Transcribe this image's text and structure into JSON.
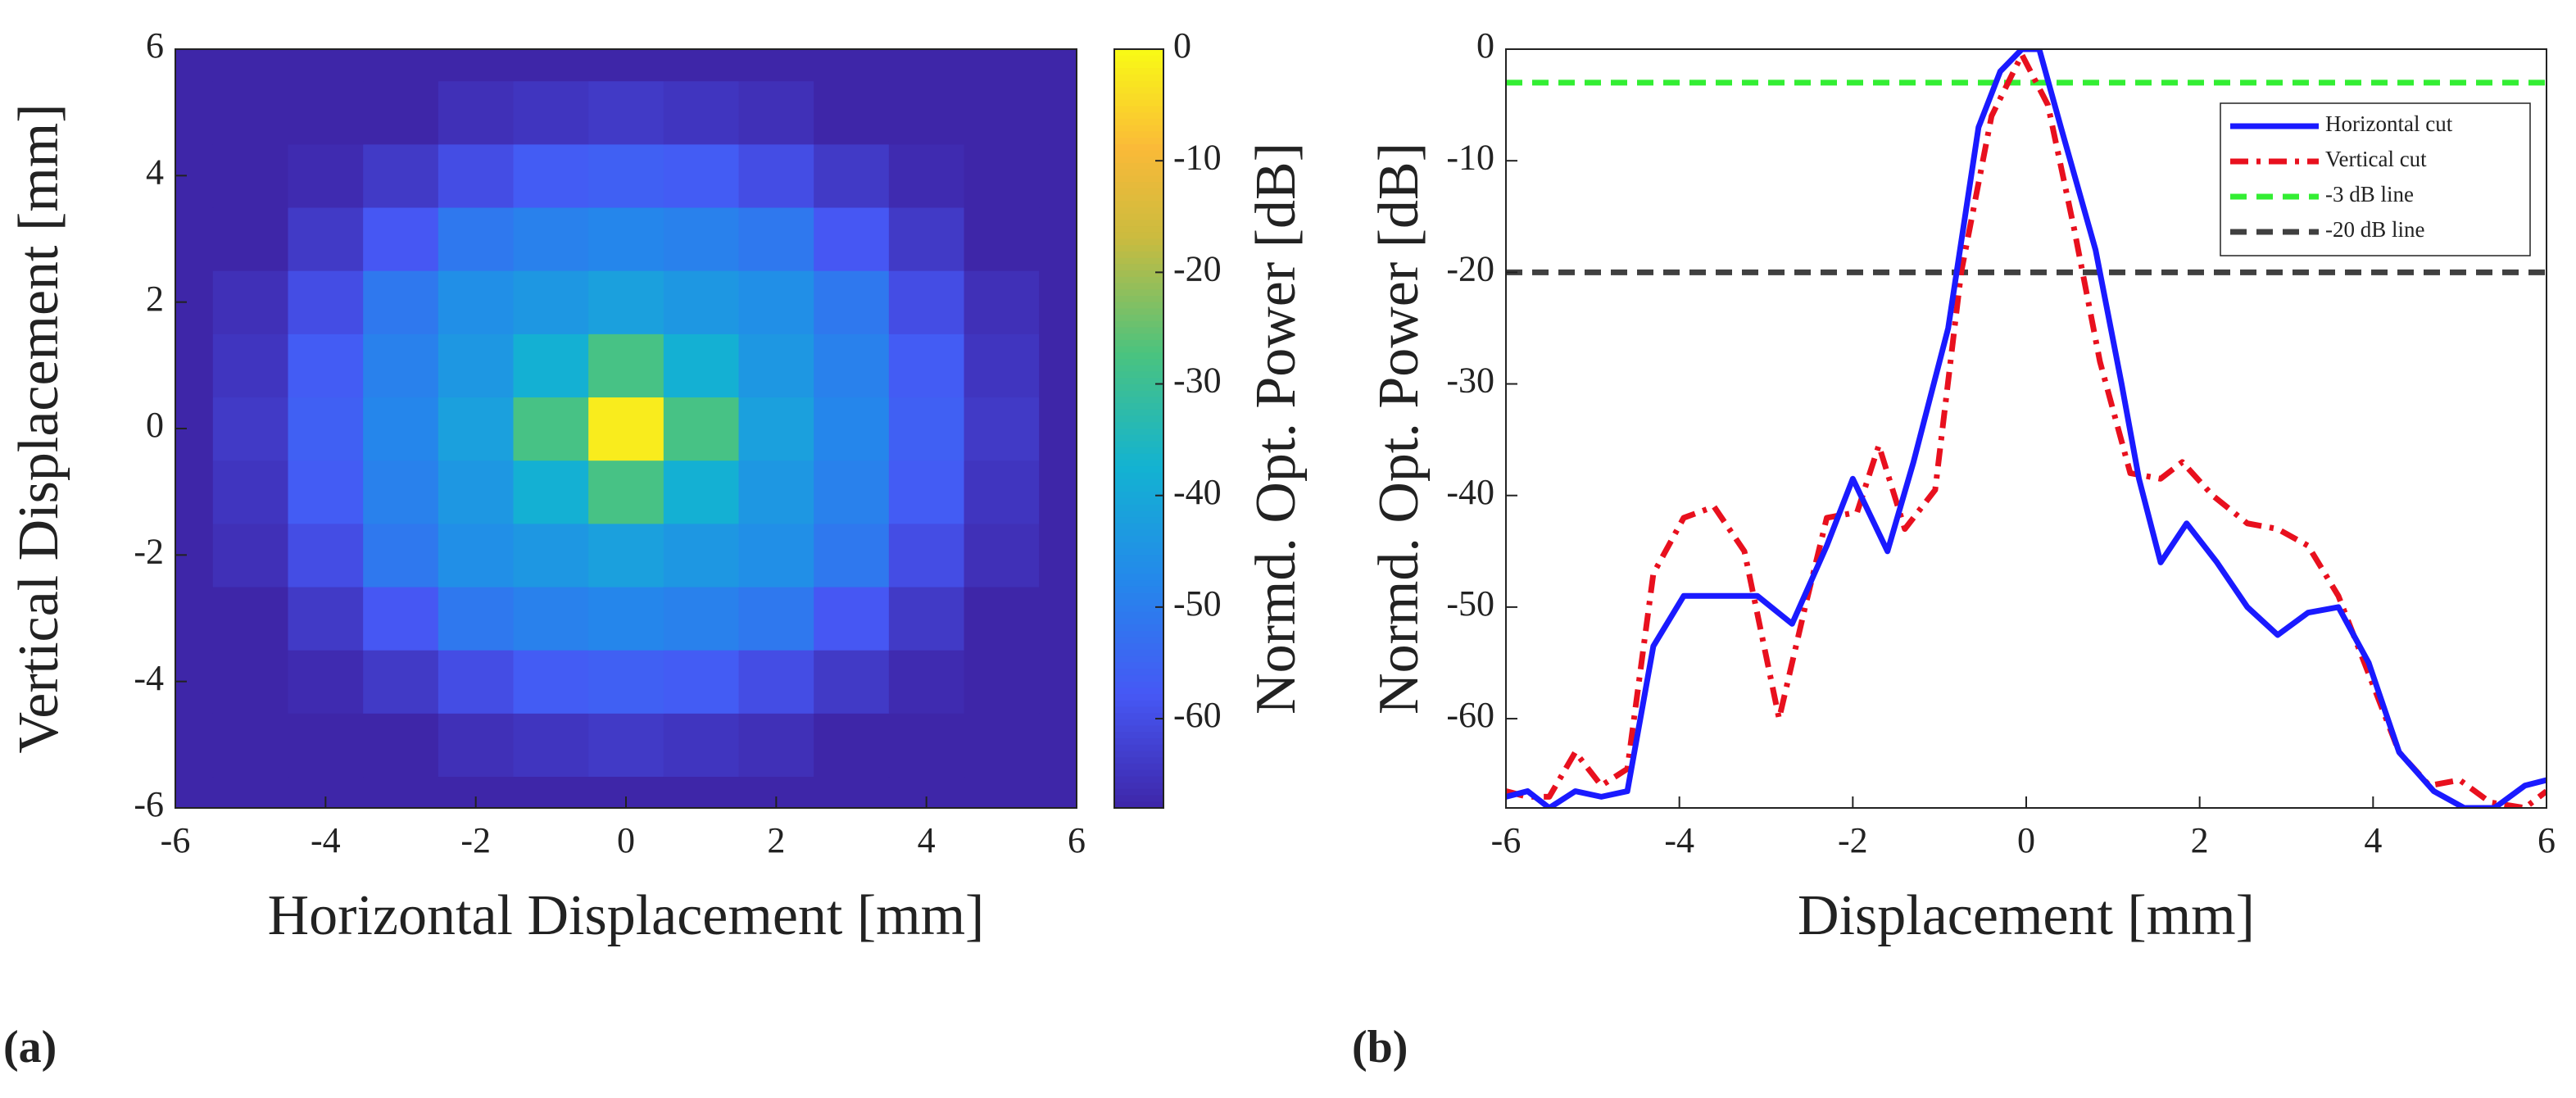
{
  "chart_data": [
    {
      "type": "contour",
      "panel_label": "(a)",
      "x_label": "Horizontal Displacement [mm]",
      "y_label": "Vertical Displacement [mm]",
      "colorbar_label": "Normd. Opt. Power [dB]",
      "colormap": "parula",
      "x": [
        -6,
        -5,
        -4,
        -3,
        -2,
        -1,
        0,
        1,
        2,
        3,
        4,
        5,
        6
      ],
      "y": [
        -6,
        -5,
        -4,
        -3,
        -2,
        -1,
        0,
        1,
        2,
        3,
        4,
        5,
        6
      ],
      "z": [
        [
          -68,
          -68,
          -68,
          -68,
          -68,
          -68,
          -68,
          -68,
          -68,
          -68,
          -68,
          -68,
          -68
        ],
        [
          -68,
          -68,
          -68,
          -68,
          -66,
          -65,
          -64,
          -65,
          -66,
          -68,
          -68,
          -68,
          -68
        ],
        [
          -68,
          -68,
          -67,
          -64,
          -60,
          -57,
          -56,
          -57,
          -60,
          -64,
          -67,
          -68,
          -68
        ],
        [
          -68,
          -68,
          -64,
          -58,
          -51,
          -49,
          -48,
          -49,
          -51,
          -58,
          -64,
          -68,
          -68
        ],
        [
          -68,
          -66,
          -60,
          -51,
          -46,
          -44,
          -42,
          -44,
          -46,
          -51,
          -60,
          -66,
          -68
        ],
        [
          -68,
          -65,
          -57,
          -49,
          -44,
          -38,
          -28,
          -38,
          -44,
          -49,
          -57,
          -65,
          -68
        ],
        [
          -68,
          -64,
          -56,
          -48,
          -42,
          -28,
          -2,
          -28,
          -42,
          -48,
          -56,
          -64,
          -68
        ],
        [
          -68,
          -65,
          -57,
          -49,
          -44,
          -38,
          -28,
          -38,
          -44,
          -49,
          -57,
          -65,
          -68
        ],
        [
          -68,
          -66,
          -60,
          -51,
          -46,
          -44,
          -42,
          -44,
          -46,
          -51,
          -60,
          -66,
          -68
        ],
        [
          -68,
          -68,
          -64,
          -58,
          -51,
          -49,
          -48,
          -49,
          -51,
          -58,
          -64,
          -68,
          -68
        ],
        [
          -68,
          -68,
          -67,
          -64,
          -60,
          -57,
          -56,
          -57,
          -60,
          -64,
          -67,
          -68,
          -68
        ],
        [
          -68,
          -68,
          -68,
          -68,
          -66,
          -65,
          -64,
          -65,
          -66,
          -68,
          -68,
          -68,
          -68
        ],
        [
          -68,
          -68,
          -68,
          -68,
          -68,
          -68,
          -68,
          -68,
          -68,
          -68,
          -68,
          -68,
          -68
        ]
      ],
      "xlim": [
        -6,
        6
      ],
      "ylim": [
        -6,
        6
      ],
      "xticks": [
        -6,
        -4,
        -2,
        0,
        2,
        4,
        6
      ],
      "yticks": [
        -6,
        -4,
        -2,
        0,
        2,
        4,
        6
      ],
      "clim": [
        -68,
        0
      ],
      "cticks": [
        0,
        -10,
        -20,
        -30,
        -40,
        -50,
        -60
      ]
    },
    {
      "type": "line",
      "panel_label": "(b)",
      "x_label": "Displacement [mm]",
      "y_label": "Normd. Opt. Power [dB]",
      "xlim": [
        -6,
        6
      ],
      "ylim": [
        -68,
        0
      ],
      "xticks": [
        -6,
        -4,
        -2,
        0,
        2,
        4,
        6
      ],
      "yticks": [
        0,
        -10,
        -20,
        -30,
        -40,
        -50,
        -60
      ],
      "legend": "northeast",
      "series": [
        {
          "name": "Horizontal cut",
          "color": "#1a1aff",
          "style": "solid",
          "x": [
            -6,
            -5.75,
            -5.5,
            -5.2,
            -4.9,
            -4.6,
            -4.3,
            -3.95,
            -3.5,
            -3.1,
            -2.7,
            -2.3,
            -2,
            -1.6,
            -1.3,
            -0.9,
            -0.55,
            -0.3,
            -0.05,
            0.15,
            0.4,
            0.8,
            1.1,
            1.3,
            1.55,
            1.85,
            2.2,
            2.55,
            2.9,
            3.25,
            3.6,
            3.95,
            4.3,
            4.7,
            5.05,
            5.4,
            5.75,
            6
          ],
          "values": [
            -67,
            -66.5,
            -68,
            -66.5,
            -67,
            -66.5,
            -53.5,
            -49,
            -49,
            -49,
            -51.5,
            -44.5,
            -38.5,
            -45,
            -37,
            -25,
            -7,
            -2,
            0,
            0,
            -7,
            -18,
            -30,
            -38.5,
            -46,
            -42.5,
            -46,
            -50,
            -52.5,
            -50.5,
            -50,
            -55,
            -63,
            -66.5,
            -68,
            -68,
            -66,
            -65.5
          ]
        },
        {
          "name": "Vertical cut",
          "color": "#e8101e",
          "style": "dashdot",
          "x": [
            -6,
            -5.75,
            -5.5,
            -5.2,
            -4.9,
            -4.6,
            -4.3,
            -3.95,
            -3.6,
            -3.25,
            -2.85,
            -2.55,
            -2.3,
            -1.95,
            -1.7,
            -1.4,
            -1.05,
            -0.75,
            -0.4,
            -0.05,
            0.25,
            0.55,
            0.85,
            1.2,
            1.55,
            1.8,
            2.15,
            2.55,
            2.9,
            3.25,
            3.6,
            3.95,
            4.3,
            4.65,
            5,
            5.35,
            5.75,
            6
          ],
          "values": [
            -66.5,
            -67,
            -67,
            -63,
            -66,
            -64.5,
            -47,
            -42,
            -41,
            -45,
            -60,
            -50,
            -42,
            -41.5,
            -35.5,
            -43,
            -39.5,
            -20,
            -6,
            -0.5,
            -5,
            -16,
            -28,
            -38,
            -38.5,
            -37,
            -40,
            -42.5,
            -43,
            -44.5,
            -49,
            -56,
            -63,
            -66,
            -65.5,
            -67.5,
            -68,
            -66.5
          ]
        },
        {
          "name": "-3 dB line",
          "color": "#33ee33",
          "style": "dashed",
          "x": [
            -6,
            6
          ],
          "values": [
            -3,
            -3
          ]
        },
        {
          "name": "-20 dB line",
          "color": "#404040",
          "style": "dashed",
          "x": [
            -6,
            6
          ],
          "values": [
            -20,
            -20
          ]
        }
      ]
    }
  ]
}
